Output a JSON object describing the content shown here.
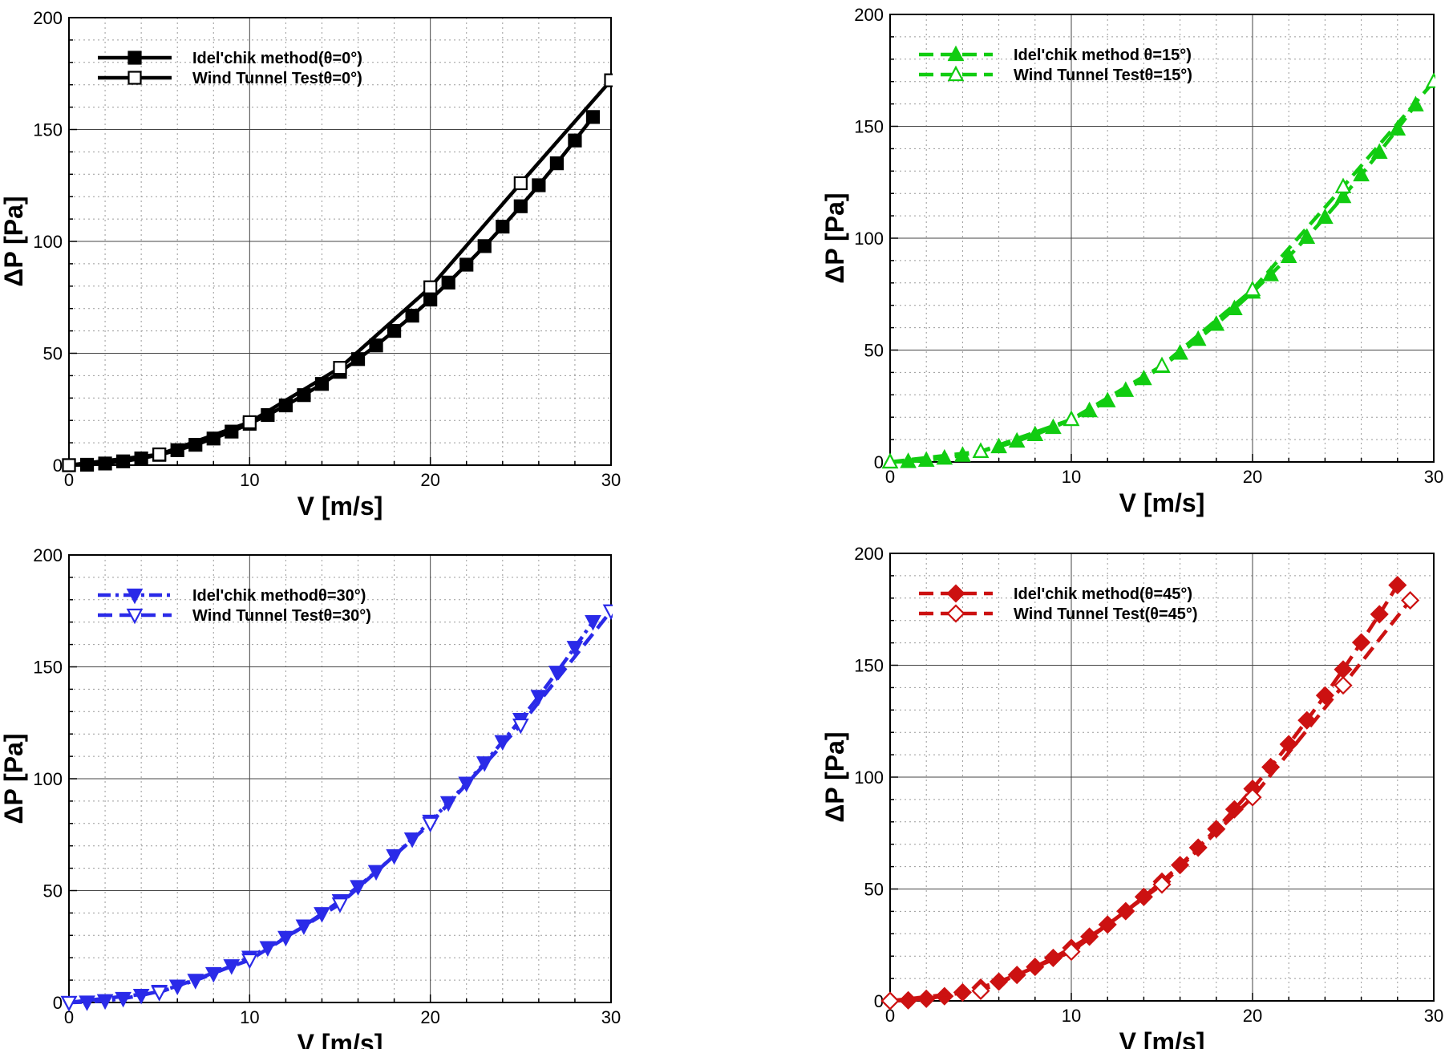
{
  "chart_data": [
    {
      "type": "line",
      "title": "",
      "xlabel": "V [m/s]",
      "ylabel": "ΔP [Pa]",
      "xlim": [
        0,
        30
      ],
      "ylim": [
        0,
        200
      ],
      "xticks": [
        "0",
        "10",
        "20",
        "30"
      ],
      "yticks": [
        "0",
        "50",
        "100",
        "150",
        "200"
      ],
      "grid": true,
      "legend_position": "top-left",
      "color": "#000000",
      "series": [
        {
          "name": "Idel'chik method(θ=0°)",
          "line_style": "solid",
          "marker": "square-filled",
          "x": [
            0,
            1,
            2,
            3,
            4,
            5,
            6,
            7,
            8,
            9,
            10,
            11,
            12,
            13,
            14,
            15,
            16,
            17,
            18,
            19,
            20,
            21,
            22,
            23,
            24,
            25,
            26,
            27,
            28,
            29
          ],
          "y": [
            0,
            0.18,
            0.74,
            1.7,
            3,
            4.6,
            6.7,
            9.1,
            11.9,
            15,
            18.5,
            22.4,
            26.7,
            31.3,
            36.3,
            41.7,
            47.4,
            53.5,
            60,
            66.8,
            74,
            81.6,
            89.6,
            97.9,
            106.6,
            115.7,
            125.1,
            134.9,
            145.1,
            155.6
          ]
        },
        {
          "name": "Wind Tunnel Testθ=0°)",
          "line_style": "solid",
          "marker": "square-open",
          "x": [
            0,
            5,
            10,
            15,
            20,
            25,
            30
          ],
          "y": [
            0,
            4.8,
            19.2,
            43.5,
            79.5,
            126,
            172
          ]
        }
      ]
    },
    {
      "type": "line",
      "title": "",
      "xlabel": "V [m/s]",
      "ylabel": "ΔP [Pa]",
      "xlim": [
        0,
        30
      ],
      "ylim": [
        0,
        200
      ],
      "xticks": [
        "0",
        "10",
        "20",
        "30"
      ],
      "yticks": [
        "0",
        "50",
        "100",
        "150",
        "200"
      ],
      "grid": true,
      "legend_position": "top-left",
      "color": "#11cc11",
      "series": [
        {
          "name": "Idel'chik method θ=15°)",
          "line_style": "dashed",
          "marker": "triangle-up-filled",
          "x": [
            0,
            1,
            2,
            3,
            4,
            5,
            6,
            7,
            8,
            9,
            10,
            11,
            12,
            13,
            14,
            15,
            16,
            17,
            18,
            19,
            20,
            21,
            22,
            23,
            24,
            25,
            26,
            27,
            28,
            29
          ],
          "y": [
            0,
            0.19,
            0.76,
            1.7,
            3,
            4.7,
            6.8,
            9.3,
            12.2,
            15.4,
            19,
            22.9,
            27.3,
            32,
            37.2,
            42.7,
            48.6,
            54.8,
            61.5,
            68.5,
            75.9,
            83.7,
            91.8,
            100.4,
            109.3,
            118.6,
            128.3,
            138.4,
            148.8,
            159.6
          ]
        },
        {
          "name": "Wind Tunnel Testθ=15°)",
          "line_style": "dashed",
          "marker": "triangle-up-open",
          "x": [
            0,
            5,
            10,
            15,
            20,
            25,
            30
          ],
          "y": [
            0,
            4.7,
            19,
            43,
            77,
            123,
            170
          ]
        }
      ]
    },
    {
      "type": "line",
      "title": "",
      "xlabel": "V [m/s]",
      "ylabel": "ΔP [Pa]",
      "xlim": [
        0,
        30
      ],
      "ylim": [
        0,
        200
      ],
      "xticks": [
        "0",
        "10",
        "20",
        "30"
      ],
      "yticks": [
        "0",
        "50",
        "100",
        "150",
        "200"
      ],
      "grid": true,
      "legend_position": "top-left",
      "color": "#2a2ae8",
      "series": [
        {
          "name": "Idel'chik methodθ=30°)",
          "line_style": "dash-dot",
          "marker": "triangle-down-filled",
          "x": [
            0,
            1,
            2,
            3,
            4,
            5,
            6,
            7,
            8,
            9,
            10,
            11,
            12,
            13,
            14,
            15,
            16,
            17,
            18,
            19,
            20,
            21,
            22,
            23,
            24,
            25,
            26,
            27,
            28,
            29
          ],
          "y": [
            0,
            0.2,
            0.8,
            1.8,
            3.2,
            5,
            7.3,
            9.9,
            12.9,
            16.4,
            20.2,
            24.5,
            29.1,
            34.2,
            39.7,
            45.5,
            51.8,
            58.5,
            65.6,
            73.1,
            81,
            89.3,
            98,
            107.1,
            116.6,
            126.5,
            136.8,
            147.6,
            158.7,
            170.2
          ]
        },
        {
          "name": "Wind Tunnel Testθ=30°)",
          "line_style": "dashed",
          "marker": "triangle-down-open",
          "x": [
            0,
            5,
            10,
            15,
            20,
            25,
            30
          ],
          "y": [
            0,
            4.5,
            19,
            44,
            80,
            124,
            175
          ]
        }
      ]
    },
    {
      "type": "line",
      "title": "",
      "xlabel": "V [m/s]",
      "ylabel": "ΔP [Pa]",
      "xlim": [
        0,
        30
      ],
      "ylim": [
        0,
        200
      ],
      "xticks": [
        "0",
        "10",
        "20",
        "30"
      ],
      "yticks": [
        "0",
        "50",
        "100",
        "150",
        "200"
      ],
      "grid": true,
      "legend_position": "top-left",
      "color": "#cc1111",
      "series": [
        {
          "name": "Idel'chik method(θ=45°)",
          "line_style": "dashed",
          "marker": "diamond-filled",
          "x": [
            0,
            1,
            2,
            3,
            4,
            5,
            6,
            7,
            8,
            9,
            10,
            11,
            12,
            13,
            14,
            15,
            16,
            17,
            18,
            19,
            20,
            21,
            22,
            23,
            24,
            25,
            26,
            27,
            28
          ],
          "y": [
            0,
            0.24,
            0.95,
            2.1,
            3.8,
            5.9,
            8.6,
            11.6,
            15.2,
            19.2,
            23.7,
            28.7,
            34.1,
            40.1,
            46.5,
            53.3,
            60.7,
            68.5,
            76.8,
            85.6,
            94.8,
            104.5,
            114.7,
            125.4,
            136.5,
            148.1,
            160.2,
            172.8,
            185.8
          ]
        },
        {
          "name": "Wind Tunnel Test(θ=45°)",
          "line_style": "dashed",
          "marker": "diamond-open",
          "x": [
            0,
            5,
            10,
            15,
            20,
            25,
            28.7
          ],
          "y": [
            0,
            4.5,
            22,
            52,
            91,
            141,
            179
          ]
        }
      ]
    }
  ]
}
